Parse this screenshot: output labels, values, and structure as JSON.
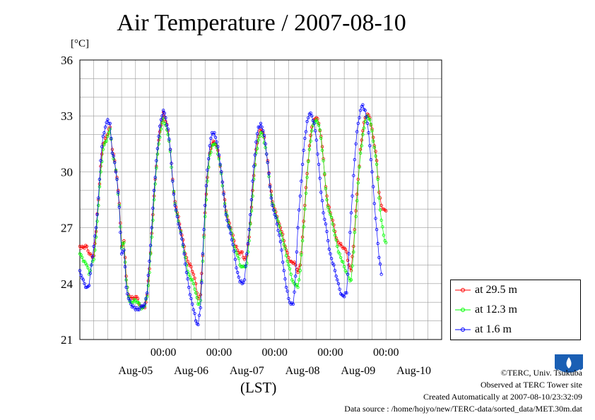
{
  "chart_data": {
    "type": "line",
    "title": "Air Temperature / 2007-08-10",
    "ylabel": "[°C]",
    "xlabel": "(LST)",
    "ylim": [
      21,
      36
    ],
    "yticks": [
      21,
      24,
      27,
      30,
      33,
      36
    ],
    "ytick_labels": [
      "21",
      "24",
      "27",
      "30",
      "33",
      "36"
    ],
    "xlim": [
      "2007-08-04T12:00",
      "2007-08-10T24:00"
    ],
    "xtick_labels": [
      "00:00",
      "00:00",
      "00:00",
      "00:00",
      "00:00"
    ],
    "xtick_times": [
      "2007-08-06T00:00",
      "2007-08-07T00:00",
      "2007-08-08T00:00",
      "2007-08-09T00:00",
      "2007-08-10T00:00"
    ],
    "date_labels": [
      "Aug-05",
      "Aug-06",
      "Aug-07",
      "Aug-08",
      "Aug-09",
      "Aug-10"
    ],
    "date_label_times": [
      "2007-08-05T12:00",
      "2007-08-06T12:00",
      "2007-08-07T12:00",
      "2007-08-08T12:00",
      "2007-08-09T12:00",
      "2007-08-10T12:00"
    ],
    "grid": true,
    "legend_position": "bottom-right outside plot",
    "sample_interval_minutes": 30,
    "series": [
      {
        "name": "at 29.5 m",
        "color": "#ff0000",
        "marker": "open-circle",
        "values": [
          26.0,
          26.0,
          25.9,
          26.0,
          25.6,
          25.5,
          25.5,
          26.8,
          28.5,
          30.3,
          31.5,
          31.8,
          32.0,
          32.4,
          31.2,
          30.6,
          29.7,
          28.3,
          26.0,
          26.3,
          24.4,
          23.4,
          23.2,
          23.2,
          23.3,
          23.2,
          22.8,
          22.7,
          22.7,
          23.4,
          24.8,
          26.7,
          28.7,
          30.3,
          31.7,
          32.5,
          33.2,
          32.7,
          32.2,
          31.2,
          29.6,
          28.4,
          27.8,
          27.2,
          26.6,
          26.0,
          25.4,
          25.0,
          24.9,
          24.5,
          24.0,
          23.2,
          23.4,
          25.5,
          27.8,
          29.7,
          31.0,
          31.5,
          31.6,
          31.4,
          30.8,
          30.0,
          28.9,
          27.9,
          27.4,
          27.0,
          26.6,
          26.0,
          25.8,
          25.6,
          25.7,
          25.3,
          25.5,
          26.5,
          28.1,
          29.8,
          31.2,
          31.9,
          32.3,
          32.1,
          31.5,
          30.6,
          29.3,
          28.4,
          28.0,
          27.6,
          27.2,
          26.8,
          26.3,
          25.8,
          25.4,
          25.2,
          25.1,
          25.0,
          24.6,
          25.0,
          26.5,
          28.2,
          29.9,
          31.4,
          32.4,
          32.8,
          32.9,
          32.6,
          31.9,
          30.7,
          29.2,
          28.2,
          27.8,
          27.4,
          26.8,
          26.3,
          26.1,
          26.0,
          25.9,
          25.7,
          25.0,
          24.7,
          26.0,
          27.9,
          29.6,
          31.2,
          32.2,
          32.9,
          33.1,
          32.9,
          32.3,
          31.4,
          30.6,
          28.9,
          28.2,
          28.0,
          27.9
        ]
      },
      {
        "name": "at 12.3 m",
        "color": "#00ff00",
        "marker": "open-circle",
        "values": [
          25.6,
          25.4,
          25.2,
          25.0,
          24.5,
          25.0,
          25.3,
          26.5,
          28.2,
          30.0,
          31.2,
          31.6,
          31.9,
          32.3,
          31.0,
          30.5,
          29.6,
          28.2,
          25.9,
          26.2,
          24.2,
          23.3,
          23.0,
          23.0,
          23.1,
          23.0,
          22.8,
          22.7,
          22.8,
          23.3,
          24.6,
          26.5,
          28.5,
          30.2,
          31.5,
          32.3,
          32.9,
          32.5,
          32.0,
          31.1,
          29.5,
          28.3,
          27.7,
          27.0,
          26.4,
          25.7,
          25.0,
          24.5,
          24.2,
          24.0,
          23.5,
          22.9,
          23.1,
          25.2,
          27.6,
          29.5,
          30.9,
          31.4,
          31.5,
          31.3,
          30.7,
          29.9,
          28.8,
          27.8,
          27.3,
          26.9,
          26.4,
          25.8,
          25.5,
          25.0,
          24.9,
          24.9,
          25.1,
          26.3,
          27.9,
          29.6,
          31.0,
          31.7,
          32.1,
          31.9,
          31.3,
          30.5,
          29.2,
          28.3,
          27.9,
          27.5,
          27.1,
          26.6,
          26.1,
          25.5,
          25.0,
          24.5,
          24.1,
          23.9,
          23.8,
          24.7,
          26.3,
          28.0,
          29.7,
          31.2,
          32.2,
          32.7,
          32.8,
          32.5,
          31.8,
          30.6,
          29.1,
          28.1,
          27.7,
          27.2,
          26.6,
          26.0,
          25.6,
          25.2,
          24.9,
          24.6,
          24.3,
          24.2,
          25.7,
          27.6,
          29.4,
          31.0,
          32.0,
          32.7,
          33.0,
          32.8,
          32.2,
          31.3,
          30.4,
          28.6,
          27.4,
          26.6,
          26.2
        ]
      },
      {
        "name": "at 1.6 m",
        "color": "#0000ff",
        "marker": "open-circle",
        "values": [
          24.7,
          24.3,
          24.0,
          23.8,
          23.9,
          25.0,
          26.0,
          27.0,
          28.6,
          30.6,
          31.9,
          32.4,
          32.8,
          32.6,
          31.0,
          30.5,
          29.6,
          28.1,
          25.6,
          25.8,
          23.8,
          23.2,
          22.9,
          22.8,
          22.6,
          22.6,
          22.7,
          22.8,
          22.9,
          23.5,
          25.2,
          27.0,
          29.0,
          30.6,
          31.9,
          32.8,
          33.3,
          32.9,
          32.3,
          31.2,
          29.5,
          28.2,
          27.6,
          27.0,
          26.4,
          25.6,
          24.6,
          23.8,
          23.2,
          22.6,
          22.0,
          21.8,
          22.7,
          25.6,
          28.2,
          30.1,
          31.4,
          32.1,
          32.1,
          31.6,
          30.9,
          30.0,
          28.8,
          27.7,
          27.1,
          26.7,
          26.1,
          25.3,
          24.6,
          24.1,
          24.0,
          24.2,
          25.6,
          26.9,
          28.5,
          30.3,
          31.6,
          32.4,
          32.6,
          32.2,
          31.5,
          30.5,
          29.2,
          28.2,
          27.7,
          27.2,
          26.6,
          25.8,
          24.7,
          23.8,
          23.2,
          22.9,
          22.9,
          24.4,
          27.0,
          28.7,
          30.4,
          31.8,
          32.7,
          33.1,
          33.0,
          32.6,
          31.7,
          30.4,
          28.9,
          27.8,
          27.2,
          26.3,
          25.6,
          25.1,
          24.7,
          24.2,
          23.7,
          23.4,
          23.3,
          23.5,
          25.6,
          27.8,
          29.8,
          31.5,
          32.6,
          33.3,
          33.6,
          33.3,
          32.6,
          31.4,
          30.0,
          28.3,
          26.9,
          25.4,
          24.5
        ]
      }
    ]
  },
  "credits": {
    "copyright": "©TERC, Univ. Tsukuba",
    "observed": "Observed at TERC Tower site",
    "created": "Created Automatically at 2007-08-10/23:32:09",
    "source": "Data source : /home/hojyo/new/TERC-data/sorted_data/MET.30m.dat"
  },
  "logo": {
    "text": "TERC",
    "color": "#1a5fb4",
    "icon": "terc-logo-icon"
  }
}
